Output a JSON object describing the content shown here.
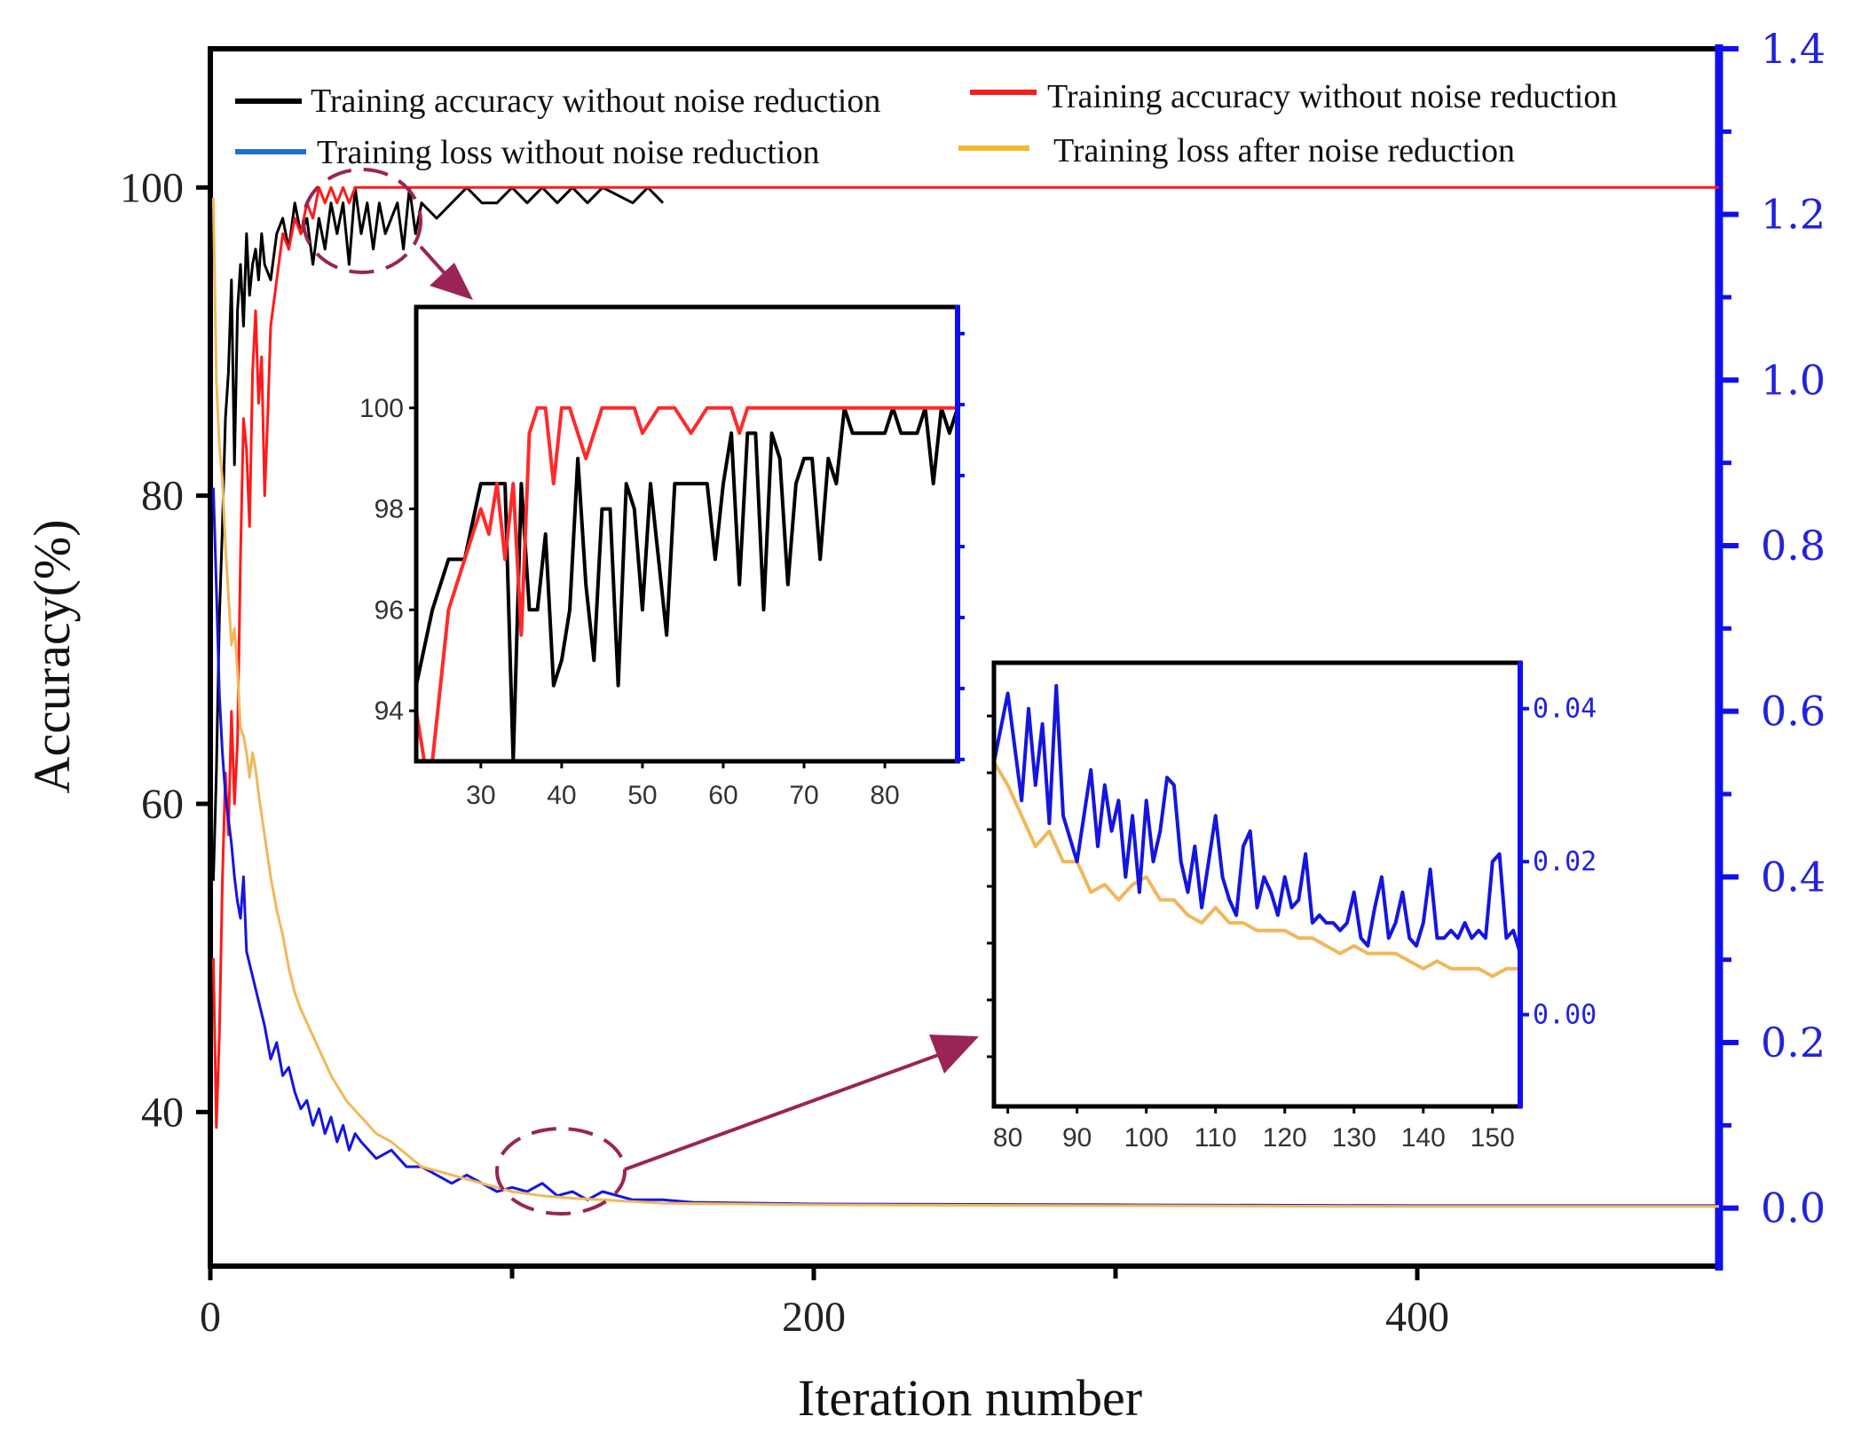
{
  "chart_data": [
    {
      "type": "line",
      "name": "main",
      "xlabel": "Iteration number",
      "ylabel": "Accuracy(%)",
      "xlim": [
        0,
        500
      ],
      "ylim_left": [
        30,
        109
      ],
      "ylim_right": [
        -0.07,
        1.4
      ],
      "x_ticks": [
        0,
        200,
        400
      ],
      "x_minor_ticks": [
        100,
        300
      ],
      "y_left_ticks": [
        40,
        60,
        80,
        100
      ],
      "y_right_ticks": [
        "0.0",
        "0.2",
        "0.4",
        "0.6",
        "0.8",
        "1.0",
        "1.2",
        "1.4"
      ],
      "y_right_values": [
        0.0,
        0.2,
        0.4,
        0.6,
        0.8,
        1.0,
        1.2,
        1.4
      ],
      "legend": [
        {
          "label": "Training accuracy without noise reduction",
          "color": "#000000"
        },
        {
          "label": "Training accuracy without noise reduction",
          "color": "#ff1a1a"
        },
        {
          "label": "Training loss without noise reduction",
          "color": "#1f6fd0"
        },
        {
          "label": "Training loss after noise reduction",
          "color": "#f5b82e"
        }
      ],
      "legend_location": "top",
      "series": [
        {
          "name": "Training accuracy without noise reduction (black)",
          "axis": "left",
          "color": "#000000",
          "x": [
            1,
            2,
            3,
            4,
            5,
            6,
            7,
            8,
            9,
            10,
            11,
            12,
            13,
            14,
            15,
            16,
            17,
            18,
            20,
            22,
            24,
            26,
            28,
            30,
            32,
            34,
            36,
            38,
            40,
            42,
            44,
            46,
            48,
            50,
            52,
            54,
            56,
            58,
            60,
            62,
            64,
            66,
            68,
            70,
            75,
            80,
            85,
            90,
            95,
            100,
            105,
            110,
            115,
            120,
            125,
            130,
            140,
            145,
            150
          ],
          "y": [
            55,
            62,
            72,
            78,
            85,
            88,
            94,
            82,
            92,
            95,
            91,
            97,
            93,
            95,
            96,
            94,
            97,
            95,
            94,
            97,
            98,
            96,
            99,
            97,
            98,
            95,
            98,
            96,
            99,
            97,
            99,
            95,
            100,
            97,
            99,
            96,
            99,
            97,
            98,
            99,
            96,
            100,
            97,
            99,
            98,
            99,
            100,
            99,
            99,
            100,
            99,
            100,
            99,
            100,
            99,
            100,
            99,
            100,
            99
          ]
        },
        {
          "name": "Training accuracy without noise reduction (red)",
          "axis": "left",
          "color": "#ff1a1a",
          "x": [
            1,
            2,
            3,
            4,
            5,
            6,
            7,
            8,
            9,
            10,
            11,
            12,
            13,
            14,
            15,
            16,
            17,
            18,
            19,
            20,
            22,
            24,
            26,
            28,
            30,
            32,
            34,
            36,
            38,
            40,
            42,
            44,
            46,
            48,
            50,
            55,
            60,
            70,
            80,
            100,
            200,
            300,
            400,
            500
          ],
          "y": [
            50,
            39,
            45,
            55,
            62,
            58,
            66,
            60,
            64,
            76,
            85,
            83,
            78,
            88,
            92,
            86,
            89,
            80,
            85,
            91,
            94,
            97,
            96,
            98,
            97,
            99,
            98,
            100,
            99,
            100,
            99,
            100,
            99,
            100,
            100,
            100,
            100,
            100,
            100,
            100,
            100,
            100,
            100,
            100
          ]
        },
        {
          "name": "Training loss without noise reduction",
          "axis": "right",
          "color": "#1515e0",
          "x": [
            1,
            2,
            3,
            4,
            5,
            6,
            7,
            8,
            9,
            10,
            11,
            12,
            14,
            16,
            18,
            20,
            22,
            24,
            26,
            28,
            30,
            32,
            34,
            36,
            38,
            40,
            42,
            44,
            46,
            48,
            50,
            55,
            60,
            65,
            70,
            75,
            80,
            85,
            90,
            95,
            100,
            105,
            110,
            115,
            120,
            125,
            130,
            140,
            150,
            160,
            200,
            300,
            400,
            500
          ],
          "y": [
            0.87,
            0.75,
            0.62,
            0.55,
            0.5,
            0.47,
            0.44,
            0.4,
            0.37,
            0.35,
            0.4,
            0.31,
            0.28,
            0.25,
            0.22,
            0.18,
            0.2,
            0.16,
            0.17,
            0.14,
            0.12,
            0.13,
            0.1,
            0.12,
            0.09,
            0.11,
            0.08,
            0.1,
            0.07,
            0.09,
            0.08,
            0.06,
            0.07,
            0.05,
            0.05,
            0.04,
            0.03,
            0.04,
            0.03,
            0.02,
            0.025,
            0.02,
            0.03,
            0.015,
            0.02,
            0.01,
            0.02,
            0.01,
            0.01,
            0.007,
            0.005,
            0.004,
            0.003,
            0.003
          ]
        },
        {
          "name": "Training loss after noise reduction",
          "axis": "right",
          "color": "#f0b85a",
          "x": [
            1,
            2,
            3,
            4,
            5,
            6,
            7,
            8,
            9,
            10,
            11,
            12,
            13,
            14,
            15,
            16,
            18,
            20,
            22,
            24,
            26,
            28,
            30,
            35,
            40,
            45,
            50,
            55,
            60,
            70,
            80,
            90,
            100,
            110,
            120,
            130,
            140,
            150,
            200,
            300,
            400,
            500
          ],
          "y": [
            1.22,
            1.0,
            0.92,
            0.88,
            0.8,
            0.74,
            0.68,
            0.7,
            0.65,
            0.58,
            0.57,
            0.55,
            0.52,
            0.55,
            0.53,
            0.5,
            0.45,
            0.4,
            0.36,
            0.33,
            0.29,
            0.26,
            0.24,
            0.2,
            0.16,
            0.13,
            0.11,
            0.09,
            0.08,
            0.05,
            0.04,
            0.03,
            0.02,
            0.015,
            0.012,
            0.01,
            0.008,
            0.006,
            0.004,
            0.003,
            0.002,
            0.002
          ]
        }
      ],
      "highlight_regions": [
        {
          "label": "zoom-region-accuracy",
          "x_range": [
            30,
            70
          ],
          "y_center": 99
        },
        {
          "label": "zoom-region-loss",
          "x_range": [
            95,
            135
          ],
          "y_center": 0.01
        }
      ]
    },
    {
      "type": "line",
      "name": "inset-accuracy",
      "xlim": [
        22,
        89
      ],
      "ylim": [
        93,
        102
      ],
      "x_ticks": [
        30,
        40,
        50,
        60,
        70,
        80
      ],
      "y_ticks": [
        94,
        96,
        98,
        100
      ],
      "series": [
        {
          "name": "black",
          "color": "#000000",
          "x": [
            22,
            24,
            26,
            28,
            30,
            32,
            33,
            34,
            35,
            36,
            37,
            38,
            39,
            40,
            41,
            42,
            43,
            44,
            45,
            46,
            47,
            48,
            49,
            50,
            51,
            52,
            53,
            54,
            55,
            56,
            57,
            58,
            59,
            60,
            61,
            62,
            63,
            64,
            65,
            66,
            67,
            68,
            69,
            70,
            71,
            72,
            73,
            74,
            75,
            76,
            77,
            78,
            79,
            80,
            81,
            82,
            83,
            84,
            85,
            86,
            87,
            88,
            89
          ],
          "y": [
            94.5,
            96,
            97,
            97,
            98.5,
            98.5,
            98.5,
            93,
            98.5,
            96,
            96,
            97.5,
            94.5,
            95,
            96,
            99,
            96.5,
            95,
            98,
            98,
            94.5,
            98.5,
            98,
            96,
            98.5,
            97,
            95.5,
            98.5,
            98.5,
            98.5,
            98.5,
            98.5,
            97,
            98.5,
            99.5,
            96.5,
            99.5,
            99.5,
            96,
            99.5,
            99,
            96.5,
            98.5,
            99,
            99,
            97,
            99,
            98.5,
            100,
            99.5,
            99.5,
            99.5,
            99.5,
            99.5,
            100,
            99.5,
            99.5,
            99.5,
            100,
            98.5,
            100,
            99.5,
            100
          ]
        },
        {
          "name": "red",
          "color": "#ff2a2a",
          "x": [
            22,
            23,
            24,
            26,
            28,
            30,
            31,
            32,
            33,
            34,
            35,
            36,
            37,
            38,
            39,
            40,
            41,
            42,
            43,
            44,
            45,
            46,
            47,
            48,
            49,
            50,
            52,
            54,
            56,
            58,
            60,
            61,
            62,
            63,
            64,
            66,
            68,
            70,
            75,
            80,
            85,
            89
          ],
          "y": [
            94,
            93,
            93,
            96,
            97,
            98,
            97.5,
            98.5,
            97,
            98.5,
            95.5,
            99.5,
            100,
            100,
            98.5,
            100,
            100,
            99.5,
            99,
            99.5,
            100,
            100,
            100,
            100,
            100,
            99.5,
            100,
            100,
            99.5,
            100,
            100,
            100,
            99.5,
            100,
            100,
            100,
            100,
            100,
            100,
            100,
            100,
            100
          ]
        }
      ]
    },
    {
      "type": "line",
      "name": "inset-loss",
      "xlim": [
        78,
        154
      ],
      "ylim": [
        -0.012,
        0.046
      ],
      "x_ticks": [
        80,
        90,
        100,
        110,
        120,
        130,
        140,
        150
      ],
      "y_ticks": [
        "0.00",
        "0.02",
        "0.04"
      ],
      "y_tick_values": [
        0.0,
        0.02,
        0.04
      ],
      "series": [
        {
          "name": "blue",
          "color": "#1515e0",
          "x": [
            78,
            80,
            82,
            83,
            84,
            85,
            86,
            87,
            88,
            90,
            92,
            93,
            94,
            95,
            96,
            97,
            98,
            99,
            100,
            101,
            102,
            103,
            104,
            105,
            106,
            107,
            108,
            109,
            110,
            111,
            112,
            113,
            114,
            115,
            116,
            117,
            118,
            119,
            120,
            121,
            122,
            123,
            124,
            125,
            126,
            127,
            128,
            129,
            130,
            131,
            132,
            133,
            134,
            135,
            136,
            137,
            138,
            139,
            140,
            141,
            142,
            143,
            144,
            145,
            146,
            147,
            148,
            149,
            150,
            151,
            152,
            153,
            154
          ],
          "y": [
            0.033,
            0.042,
            0.028,
            0.04,
            0.03,
            0.038,
            0.025,
            0.043,
            0.026,
            0.02,
            0.032,
            0.022,
            0.03,
            0.024,
            0.028,
            0.018,
            0.026,
            0.016,
            0.028,
            0.02,
            0.024,
            0.031,
            0.03,
            0.02,
            0.016,
            0.022,
            0.014,
            0.02,
            0.026,
            0.018,
            0.015,
            0.013,
            0.022,
            0.024,
            0.014,
            0.018,
            0.016,
            0.013,
            0.018,
            0.014,
            0.015,
            0.021,
            0.012,
            0.013,
            0.012,
            0.012,
            0.011,
            0.012,
            0.016,
            0.01,
            0.009,
            0.014,
            0.018,
            0.01,
            0.012,
            0.016,
            0.01,
            0.009,
            0.012,
            0.019,
            0.01,
            0.01,
            0.011,
            0.01,
            0.012,
            0.01,
            0.011,
            0.01,
            0.02,
            0.021,
            0.01,
            0.011,
            0.008
          ]
        },
        {
          "name": "orange",
          "color": "#f0b85a",
          "x": [
            78,
            80,
            82,
            84,
            86,
            88,
            90,
            92,
            94,
            96,
            98,
            100,
            102,
            104,
            106,
            108,
            110,
            112,
            114,
            116,
            118,
            120,
            122,
            124,
            126,
            128,
            130,
            132,
            134,
            136,
            138,
            140,
            142,
            144,
            146,
            148,
            150,
            152,
            154
          ],
          "y": [
            0.033,
            0.03,
            0.026,
            0.022,
            0.024,
            0.02,
            0.02,
            0.016,
            0.017,
            0.015,
            0.017,
            0.018,
            0.015,
            0.015,
            0.013,
            0.012,
            0.014,
            0.012,
            0.012,
            0.011,
            0.011,
            0.011,
            0.01,
            0.01,
            0.009,
            0.008,
            0.009,
            0.008,
            0.008,
            0.008,
            0.007,
            0.006,
            0.007,
            0.006,
            0.006,
            0.006,
            0.005,
            0.006,
            0.006
          ]
        }
      ]
    }
  ]
}
